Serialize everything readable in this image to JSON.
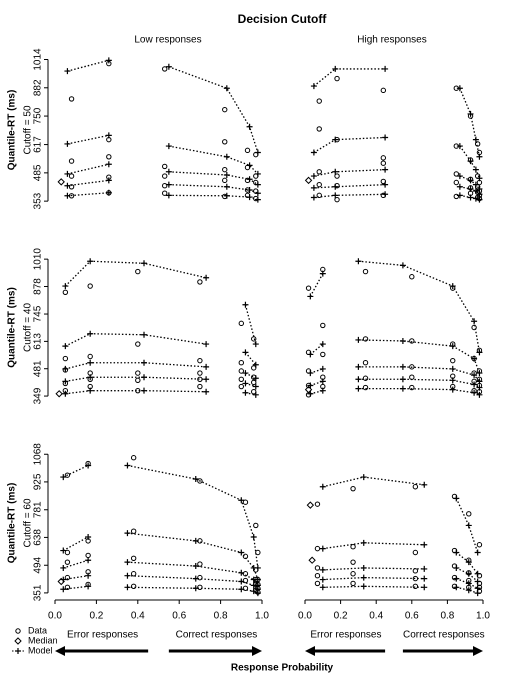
{
  "chart_data": {
    "type": "quantile-probability",
    "title": "Decision Cutoff",
    "column_titles": [
      "Low responses",
      "High responses"
    ],
    "row_labels": [
      "Cutoff = 50",
      "Cutoff = 40",
      "Cutoff = 60"
    ],
    "y_label": "Quantile-RT (ms)",
    "x_label": "Response Probability",
    "xlim": [
      0,
      1
    ],
    "xticks": [
      {
        "value": 0,
        "label": "0.0"
      },
      {
        "value": 0.2,
        "label": "0.2"
      },
      {
        "value": 0.4,
        "label": "0.4"
      },
      {
        "value": 0.6,
        "label": "0.6"
      },
      {
        "value": 0.8,
        "label": "0.8"
      },
      {
        "value": 1,
        "label": "1.0"
      }
    ],
    "legend": [
      "Data",
      "Median",
      "Model"
    ],
    "arrow_labels": [
      "Error responses",
      "Correct responses"
    ],
    "color": "#000000",
    "panels": [
      {
        "ylim": [
          335,
          1035
        ],
        "yticks": [
          353,
          485,
          617,
          750,
          882,
          1014
        ],
        "model": {
          "error": {
            "x": [
              0.06,
              0.26
            ],
            "quantiles": [
              [
                378,
                392
              ],
              [
                425,
                450
              ],
              [
                480,
                525
              ],
              [
                620,
                660
              ],
              [
                960,
                1010
              ]
            ]
          },
          "correct": {
            "x": [
              0.55,
              0.83,
              0.94,
              0.98
            ],
            "quantiles": [
              [
                380,
                378,
                372,
                360
              ],
              [
                430,
                420,
                405,
                390
              ],
              [
                490,
                475,
                455,
                430
              ],
              [
                610,
                560,
                520,
                480
              ],
              [
                980,
                880,
                700,
                580
              ]
            ]
          }
        },
        "data": {
          "error": {
            "x": [
              0.08,
              0.26
            ],
            "quantiles": [
              [
                378,
                392
              ],
              [
                420,
                465
              ],
              [
                470,
                560
              ],
              [
                540,
                640
              ],
              [
                830,
                995
              ]
            ]
          },
          "correct": {
            "x": [
              0.53,
              0.82,
              0.93,
              0.97
            ],
            "quantiles": [
              [
                390,
                375,
                380,
                365
              ],
              [
                425,
                450,
                405,
                400
              ],
              [
                470,
                500,
                450,
                440
              ],
              [
                515,
                630,
                510,
                470
              ],
              [
                970,
                780,
                590,
                570
              ]
            ]
          }
        },
        "median": {
          "x": [
            0.03
          ],
          "values": [
            443
          ]
        }
      },
      {
        "ylim": [
          335,
          1035
        ],
        "yticks": [
          353,
          485,
          617,
          750,
          882,
          1014
        ],
        "model": {
          "error": {
            "x": [
              0.05,
              0.17,
              0.45
            ],
            "quantiles": [
              [
                370,
                380,
                385
              ],
              [
                415,
                420,
                430
              ],
              [
                470,
                490,
                500
              ],
              [
                580,
                640,
                650
              ],
              [
                890,
                970,
                970
              ]
            ]
          },
          "correct": {
            "x": [
              0.87,
              0.93,
              0.96,
              0.98
            ],
            "quantiles": [
              [
                380,
                370,
                365,
                360
              ],
              [
                420,
                410,
                400,
                385
              ],
              [
                470,
                450,
                430,
                410
              ],
              [
                610,
                540,
                500,
                460
              ],
              [
                880,
                760,
                640,
                560
              ]
            ]
          }
        },
        "data": {
          "error": {
            "x": [
              0.08,
              0.18,
              0.44
            ],
            "quantiles": [
              [
                380,
                360,
                380
              ],
              [
                430,
                425,
                445
              ],
              [
                490,
                470,
                530
              ],
              [
                690,
                640,
                555
              ],
              [
                820,
                925,
                870
              ]
            ]
          },
          "correct": {
            "x": [
              0.85,
              0.93,
              0.97,
              0.98
            ],
            "quantiles": [
              [
                375,
                390,
                370,
                365
              ],
              [
                440,
                415,
                395,
                380
              ],
              [
                480,
                455,
                420,
                400
              ],
              [
                610,
                545,
                470,
                440
              ],
              [
                880,
                750,
                620,
                580
              ]
            ]
          }
        },
        "median": {
          "x": [
            0.02
          ],
          "values": [
            450
          ]
        }
      },
      {
        "ylim": [
          330,
          1030
        ],
        "yticks": [
          349,
          481,
          613,
          745,
          878,
          1010
        ],
        "model": {
          "error": {
            "x": [
              0.05,
              0.17,
              0.43,
              0.73
            ],
            "quantiles": [
              [
                360,
                375,
                375,
                370
              ],
              [
                420,
                440,
                440,
                430
              ],
              [
                480,
                510,
                510,
                490
              ],
              [
                590,
                650,
                645,
                600
              ],
              [
                880,
                1000,
                990,
                920
              ]
            ]
          },
          "correct": {
            "x": [
              0.92,
              0.97
            ],
            "quantiles": [
              [
                365,
                355
              ],
              [
                410,
                395
              ],
              [
                460,
                435
              ],
              [
                560,
                500
              ],
              [
                790,
                600
              ]
            ]
          }
        },
        "data": {
          "error": {
            "x": [
              0.05,
              0.17,
              0.4,
              0.7
            ],
            "quantiles": [
              [
                375,
                395,
                375,
                395
              ],
              [
                410,
                430,
                425,
                430
              ],
              [
                475,
                460,
                460,
                460
              ],
              [
                530,
                540,
                600,
                520
              ],
              [
                850,
                880,
                950,
                900
              ]
            ]
          },
          "correct": {
            "x": [
              0.9,
              0.96
            ],
            "quantiles": [
              [
                395,
                370
              ],
              [
                430,
                415
              ],
              [
                470,
                440
              ],
              [
                510,
                485
              ],
              [
                700,
                625
              ]
            ]
          }
        },
        "median": {
          "x": [
            0.02
          ],
          "values": [
            360
          ]
        }
      },
      {
        "ylim": [
          330,
          1030
        ],
        "yticks": [
          349,
          481,
          613,
          745,
          878,
          1010
        ],
        "model": {
          "error": {
            "x": [
              0.03,
              0.1
            ],
            "quantiles": [
              [
                360,
                375
              ],
              [
                400,
                420
              ],
              [
                460,
                480
              ],
              [
                550,
                600
              ],
              [
                830,
                940
              ]
            ]
          },
          "correct": {
            "x": [
              0.3,
              0.55,
              0.83,
              0.95,
              0.98
            ],
            "quantiles": [
              [
                385,
                385,
                380,
                365,
                355
              ],
              [
                430,
                430,
                425,
                405,
                390
              ],
              [
                490,
                490,
                480,
                450,
                420
              ],
              [
                620,
                615,
                590,
                530,
                460
              ],
              [
                1000,
                980,
                880,
                710,
                560
              ]
            ]
          }
        },
        "data": {
          "error": {
            "x": [
              0.02,
              0.1
            ],
            "quantiles": [
              [
                355,
                395
              ],
              [
                400,
                440
              ],
              [
                470,
                550
              ],
              [
                560,
                690
              ],
              [
                870,
                960
              ]
            ]
          },
          "correct": {
            "x": [
              0.34,
              0.6,
              0.83,
              0.95,
              0.98
            ],
            "quantiles": [
              [
                390,
                390,
                395,
                375,
                370
              ],
              [
                435,
                440,
                445,
                420,
                400
              ],
              [
                510,
                490,
                520,
                460,
                430
              ],
              [
                625,
                615,
                600,
                530,
                470
              ],
              [
                950,
                925,
                870,
                680,
                570
              ]
            ]
          }
        },
        "median": {
          "x": [
            0.02
          ],
          "values": [
            380
          ]
        }
      },
      {
        "ylim": [
          335,
          1090
        ],
        "yticks": [
          351,
          494,
          638,
          781,
          925,
          1068
        ],
        "model": {
          "error": {
            "x": [
              0.04,
              0.16
            ],
            "quantiles": [
              [
                370,
                385
              ],
              [
                420,
                440
              ],
              [
                480,
                520
              ],
              [
                570,
                640
              ],
              [
                950,
                1010
              ]
            ]
          },
          "correct": {
            "x": [
              0.35,
              0.68,
              0.9,
              0.96,
              0.98
            ],
            "quantiles": [
              [
                380,
                375,
                370,
                360,
                350
              ],
              [
                440,
                425,
                410,
                390,
                370
              ],
              [
                510,
                490,
                455,
                420,
                390
              ],
              [
                660,
                620,
                560,
                480,
                420
              ],
              [
                1010,
                940,
                830,
                640,
                480
              ]
            ]
          }
        },
        "data": {
          "error": {
            "x": [
              0.06,
              0.16
            ],
            "quantiles": [
              [
                380,
                395
              ],
              [
                430,
                460
              ],
              [
                510,
                545
              ],
              [
                560,
                620
              ],
              [
                960,
                1020
              ]
            ]
          },
          "correct": {
            "x": [
              0.38,
              0.7,
              0.92,
              0.97,
              0.98
            ],
            "quantiles": [
              [
                385,
                380,
                375,
                365,
                355
              ],
              [
                450,
                430,
                415,
                395,
                375
              ],
              [
                530,
                500,
                450,
                420,
                395
              ],
              [
                670,
                620,
                540,
                470,
                420
              ],
              [
                1050,
                930,
                820,
                700,
                560
              ]
            ]
          }
        },
        "median": {
          "x": [
            0.03
          ],
          "values": [
            410
          ]
        }
      },
      {
        "ylim": [
          335,
          1090
        ],
        "yticks": [
          351,
          494,
          638,
          781,
          925,
          1068
        ],
        "model": {
          "error": {
            "x": [
              0.1,
              0.33,
              0.67
            ],
            "quantiles": [
              [
                380,
                385,
                380
              ],
              [
                420,
                430,
                425
              ],
              [
                470,
                480,
                475
              ],
              [
                580,
                610,
                600
              ],
              [
                900,
                950,
                910
              ]
            ]
          },
          "correct": {
            "x": [
              0.85,
              0.92,
              0.97
            ],
            "quantiles": [
              [
                380,
                365,
                350
              ],
              [
                425,
                400,
                375
              ],
              [
                480,
                450,
                410
              ],
              [
                560,
                510,
                450
              ],
              [
                840,
                700,
                560
              ]
            ]
          }
        },
        "data": {
          "error": {
            "x": [
              0.07,
              0.27,
              0.62
            ],
            "quantiles": [
              [
                400,
                400,
                385
              ],
              [
                440,
                450,
                425
              ],
              [
                480,
                510,
                465
              ],
              [
                580,
                590,
                560
              ],
              [
                810,
                890,
                900
              ]
            ]
          },
          "correct": {
            "x": [
              0.84,
              0.92,
              0.98
            ],
            "quantiles": [
              [
                385,
                380,
                360
              ],
              [
                430,
                415,
                380
              ],
              [
                490,
                455,
                400
              ],
              [
                570,
                520,
                440
              ],
              [
                850,
                760,
                600
              ]
            ]
          }
        },
        "median": {
          "x": [
            0.03,
            0.04
          ],
          "values": [
            805,
            520
          ]
        }
      }
    ]
  }
}
